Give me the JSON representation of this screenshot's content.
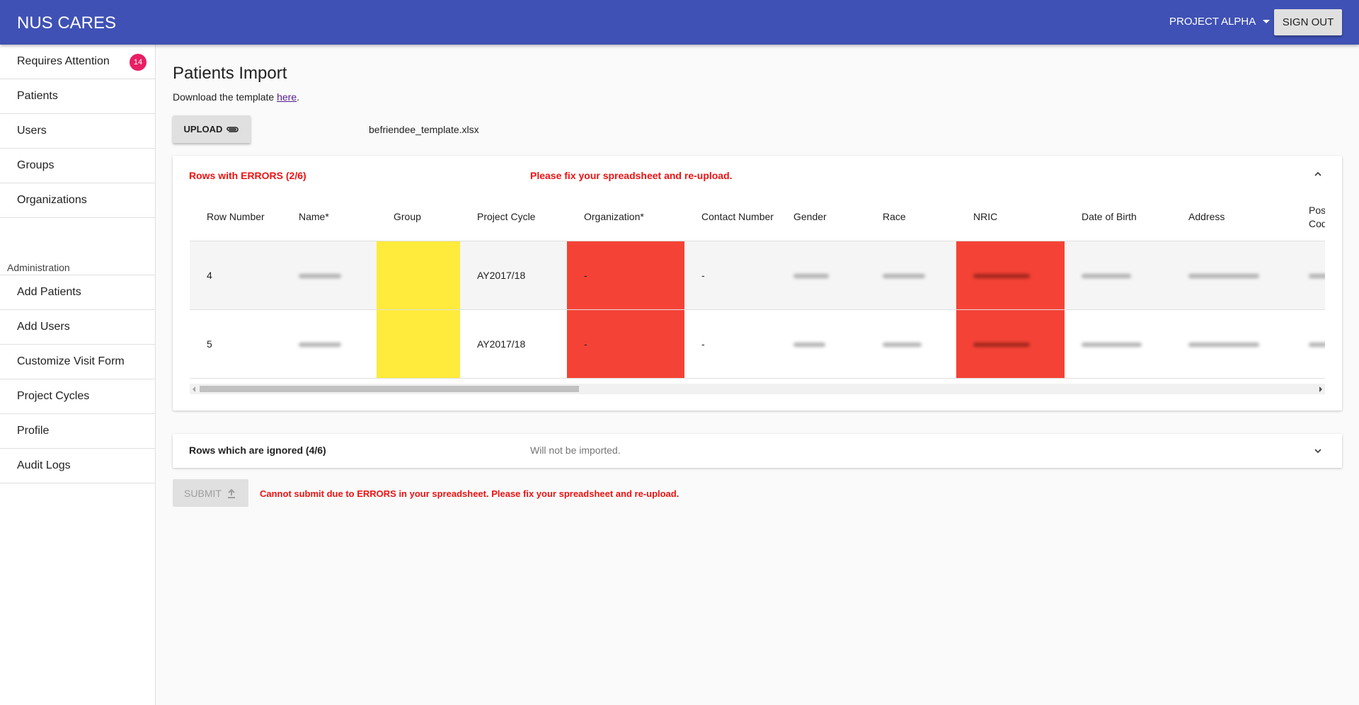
{
  "appbar": {
    "title": "NUS CARES",
    "project": "PROJECT ALPHA",
    "signout": "SIGN OUT"
  },
  "sidebar": {
    "items": [
      {
        "label": "Requires Attention",
        "badge": "14"
      },
      {
        "label": "Patients"
      },
      {
        "label": "Users"
      },
      {
        "label": "Groups"
      },
      {
        "label": "Organizations"
      }
    ],
    "admin_header": "Administration",
    "admin_items": [
      {
        "label": "Add Patients"
      },
      {
        "label": "Add Users"
      },
      {
        "label": "Customize Visit Form"
      },
      {
        "label": "Project Cycles"
      },
      {
        "label": "Profile"
      },
      {
        "label": "Audit Logs"
      }
    ]
  },
  "main": {
    "title": "Patients Import",
    "template_prefix": "Download the template ",
    "template_link": "here",
    "template_suffix": ".",
    "upload_label": "UPLOAD",
    "filename": "befriendee_template.xlsx"
  },
  "errors_panel": {
    "title": "Rows with ERRORS (2/6)",
    "message": "Please fix your spreadsheet and re-upload.",
    "columns": [
      "Row Number",
      "Name*",
      "Group",
      "Project Cycle",
      "Organization*",
      "Contact Number",
      "Gender",
      "Race",
      "NRIC",
      "Date of Birth",
      "Address",
      "Postal Code"
    ],
    "rows": [
      {
        "row": "4",
        "cycle": "AY2017/18",
        "organization": "-",
        "contact": "-"
      },
      {
        "row": "5",
        "cycle": "AY2017/18",
        "organization": "-",
        "contact": "-"
      }
    ]
  },
  "ignored_panel": {
    "title": "Rows which are ignored (4/6)",
    "message": "Will not be imported."
  },
  "submit": {
    "label": "SUBMIT",
    "message": "Cannot submit due to ERRORS in your spreadsheet. Please fix your spreadsheet and re-upload."
  },
  "colors": {
    "appbar": "#3f51b5",
    "error_red": "#f44336",
    "warning_yellow": "#ffeb3b",
    "badge": "#e91e63"
  }
}
